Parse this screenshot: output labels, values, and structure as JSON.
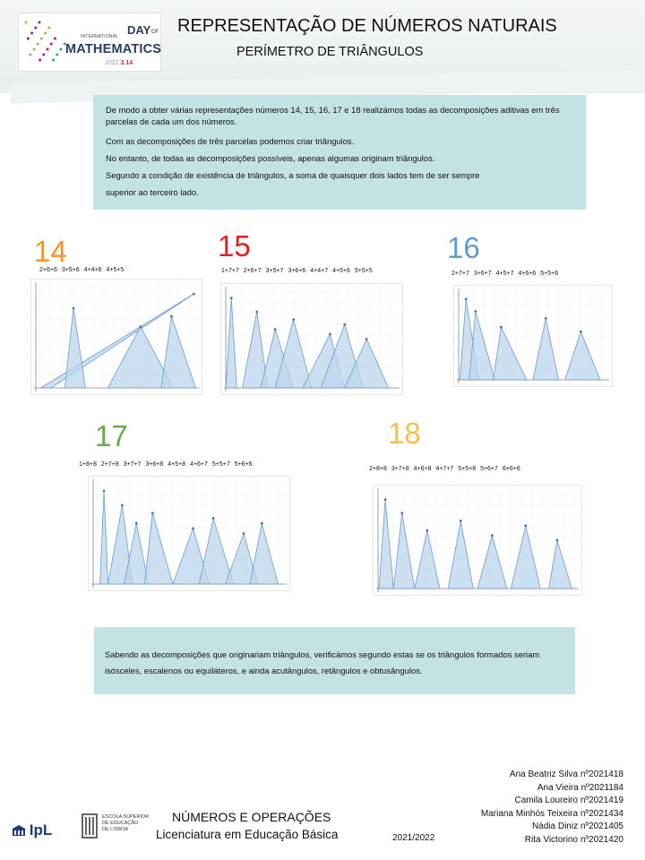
{
  "header": {
    "logo": {
      "small_text": "INTERNATIONAL",
      "day": "DAY",
      "of": "OF",
      "math": "MATHEMATICS",
      "year": "2022",
      "date": "3.14",
      "dot_colors": [
        "#f2a900",
        "#e4572e",
        "#c2185b",
        "#7b1fa2",
        "#1e88e5",
        "#26a69a",
        "#8bc34a"
      ]
    },
    "title": "REPRESENTAÇÃO DE NÚMEROS NATURAIS",
    "subtitle": "PERÍMETRO DE TRIÂNGULOS"
  },
  "intro": {
    "paragraphs": [
      "De modo a obter várias representações números 14, 15, 16, 17 e 18 realizámos todas as decomposições aditivas em três parcelas de cada um dos números.",
      "Com as decomposições de três parcelas podemos criar triângulos.",
      "No entanto, de todas as decomposições possíveis, apenas algumas originam triângulos.",
      "Segundo a condição de existência de triângulos, a soma de quaisquer dois lados tem de ser sempre",
      "superior ao terceiro lado."
    ]
  },
  "groups": [
    {
      "number": "14",
      "color": "#f7941d",
      "decompositions": [
        "2+6+6",
        "3+5+6",
        "4+4+6",
        "4+5+5"
      ],
      "peaks": [
        [
          0.06,
          0.95,
          0.12
        ],
        [
          0.2,
          0.25,
          0.32
        ],
        [
          0.45,
          0.64,
          0.83
        ],
        [
          0.76,
          0.82,
          0.96
        ]
      ]
    },
    {
      "number": "15",
      "color": "#e31e24",
      "decompositions": [
        "1+7+7",
        "2+6+7",
        "3+5+7",
        "3+6+6",
        "4+4+7",
        "4+5+6",
        "5+5+5"
      ],
      "peaks": [
        [
          0.03,
          0.06,
          0.09
        ],
        [
          0.12,
          0.2,
          0.26
        ],
        [
          0.22,
          0.3,
          0.4
        ],
        [
          0.3,
          0.4,
          0.5
        ],
        [
          0.45,
          0.6,
          0.68
        ],
        [
          0.55,
          0.68,
          0.78
        ],
        [
          0.68,
          0.8,
          0.92
        ]
      ]
    },
    {
      "number": "16",
      "color": "#5b9bd5",
      "decompositions": [
        "2+7+7",
        "3+6+7",
        "4+5+7",
        "4+6+6",
        "5+5+6"
      ],
      "peaks": [
        [
          0.04,
          0.08,
          0.16
        ],
        [
          0.1,
          0.14,
          0.26
        ],
        [
          0.25,
          0.3,
          0.46
        ],
        [
          0.5,
          0.58,
          0.66
        ],
        [
          0.7,
          0.8,
          0.92
        ]
      ]
    },
    {
      "number": "17",
      "color": "#6aa84f",
      "decompositions": [
        "1+8+8",
        "2+7+8",
        "3+7+7",
        "3+6+8",
        "4+5+8",
        "4+6+7",
        "5+5+7",
        "5+6+6"
      ],
      "peaks": [
        [
          0.06,
          0.08,
          0.1
        ],
        [
          0.1,
          0.17,
          0.22
        ],
        [
          0.18,
          0.24,
          0.3
        ],
        [
          0.28,
          0.32,
          0.42
        ],
        [
          0.42,
          0.52,
          0.6
        ],
        [
          0.55,
          0.62,
          0.72
        ],
        [
          0.68,
          0.77,
          0.84
        ],
        [
          0.8,
          0.86,
          0.94
        ]
      ]
    },
    {
      "number": "18",
      "color": "#f2c14e",
      "decompositions": [
        "2+8+8",
        "3+7+8",
        "4+6+8",
        "4+7+7",
        "5+5+8",
        "5+6+7",
        "6+6+6"
      ],
      "peaks": [
        [
          0.03,
          0.06,
          0.1
        ],
        [
          0.1,
          0.14,
          0.2
        ],
        [
          0.2,
          0.26,
          0.32
        ],
        [
          0.36,
          0.42,
          0.48
        ],
        [
          0.5,
          0.57,
          0.64
        ],
        [
          0.66,
          0.73,
          0.8
        ],
        [
          0.84,
          0.88,
          0.95
        ]
      ]
    }
  ],
  "conclusion": "Sabendo as decomposições que originariam triângulos, verificámos segundo estas se os triângulos formados seriam isósceles, escalenos ou equiláteros, e ainda acutângulos, retângulos e obtusângulos.",
  "footer": {
    "ipl_logo": "IpL",
    "school_lines": [
      "ESCOLA SUPERIOR",
      "DE EDUCAÇÃO",
      "DE LISBOA"
    ],
    "course_title": "NÚMEROS E OPERAÇÕES",
    "course_sub": "Licenciatura em Educação Básica",
    "year": "2021/2022",
    "authors": [
      "Ana Beatriz Silva nº2021418",
      "Ana Vieira nº2021184",
      "Camila Loureiro nº2021419",
      "Mariana Minhós Teixeira nº2021434",
      "Nádia Diniz nº2021405",
      "Rita Victorino nº2021420"
    ]
  }
}
